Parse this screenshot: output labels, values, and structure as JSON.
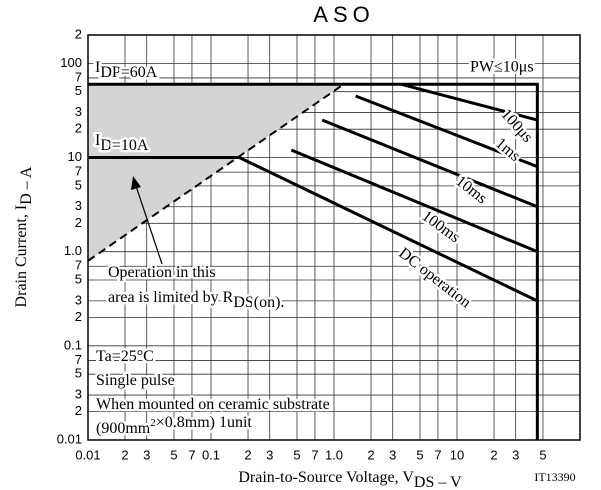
{
  "chart_data": {
    "type": "line",
    "title": "ASO",
    "x_label": [
      "Drain-to-Source Voltage, V",
      {
        "sub": "DS"
      },
      " – V"
    ],
    "y_label": [
      "Drain Current, I",
      {
        "sub": "D"
      },
      " – A"
    ],
    "xscale": "log",
    "yscale": "log",
    "grid": true,
    "xlim": [
      0.01,
      100
    ],
    "ylim": [
      0.01,
      200
    ],
    "xticks": [
      0.01,
      {
        "value": 0.02,
        "label": "2"
      },
      {
        "value": 0.03,
        "label": "3"
      },
      {
        "value": 0.05,
        "label": "5"
      },
      {
        "value": 0.07,
        "label": "7"
      },
      0.1,
      {
        "value": 0.2,
        "label": "2"
      },
      {
        "value": 0.3,
        "label": "3"
      },
      {
        "value": 0.5,
        "label": "5"
      },
      {
        "value": 0.7,
        "label": "7"
      },
      {
        "value": 1,
        "label": "1.0"
      },
      2,
      3,
      5,
      7,
      10,
      {
        "value": 20,
        "label": "2"
      },
      {
        "value": 30,
        "label": "3"
      },
      {
        "value": 50,
        "label": "5"
      }
    ],
    "yticks": [
      0.01,
      {
        "value": 0.02,
        "label": "2"
      },
      {
        "value": 0.03,
        "label": "3"
      },
      {
        "value": 0.05,
        "label": "5"
      },
      {
        "value": 0.07,
        "label": "7"
      },
      0.1,
      {
        "value": 0.2,
        "label": "2"
      },
      {
        "value": 0.3,
        "label": "3"
      },
      {
        "value": 0.5,
        "label": "5"
      },
      {
        "value": 0.7,
        "label": "7"
      },
      {
        "value": 1,
        "label": "1.0"
      },
      2,
      3,
      5,
      7,
      10,
      {
        "value": 20,
        "label": "2"
      },
      {
        "value": 30,
        "label": "3"
      },
      {
        "value": 50,
        "label": "5"
      },
      {
        "value": 70,
        "label": "7"
      },
      100,
      {
        "value": 200,
        "label": "2"
      }
    ],
    "series": [
      {
        "name": "PW≤10μs",
        "color": "#000000",
        "x": [
          0.01,
          45,
          45
        ],
        "y": [
          60,
          60,
          0.01
        ]
      },
      {
        "name": "100μs",
        "color": "#000000",
        "x": [
          3.5,
          45
        ],
        "y": [
          60,
          25
        ]
      },
      {
        "name": "1ms",
        "color": "#000000",
        "x": [
          1.5,
          45
        ],
        "y": [
          45,
          8
        ]
      },
      {
        "name": "10ms",
        "color": "#000000",
        "x": [
          0.8,
          45
        ],
        "y": [
          25,
          3
        ]
      },
      {
        "name": "100ms",
        "color": "#000000",
        "x": [
          0.45,
          45
        ],
        "y": [
          12,
          1
        ]
      },
      {
        "name": "DC operation",
        "color": "#000000",
        "x": [
          0.01,
          0.17,
          45
        ],
        "y": [
          10,
          10,
          0.3
        ]
      },
      {
        "color": "#000000",
        "dashed": true,
        "x": [
          0.01,
          1.2
        ],
        "y": [
          0.8,
          60
        ]
      }
    ],
    "annotations": [
      {
        "parts": [
          "I",
          {
            "sub": "DP"
          },
          "=60A"
        ]
      },
      {
        "parts": [
          "I",
          {
            "sub": "D"
          },
          "=10A"
        ]
      },
      {
        "parts": [
          "Operation in this"
        ]
      },
      {
        "parts": [
          "area is limited by R",
          {
            "sub": "DS"
          },
          "(on)."
        ]
      },
      {
        "parts": [
          "Ta=25°C"
        ]
      },
      {
        "parts": [
          "Single pulse"
        ]
      },
      {
        "parts": [
          "When mounted on ceramic substrate"
        ]
      },
      {
        "parts": [
          "(900mm",
          {
            "sup": "2"
          },
          "×0.8mm) 1unit"
        ]
      },
      {
        "parts": [
          "IT13390"
        ]
      }
    ]
  }
}
